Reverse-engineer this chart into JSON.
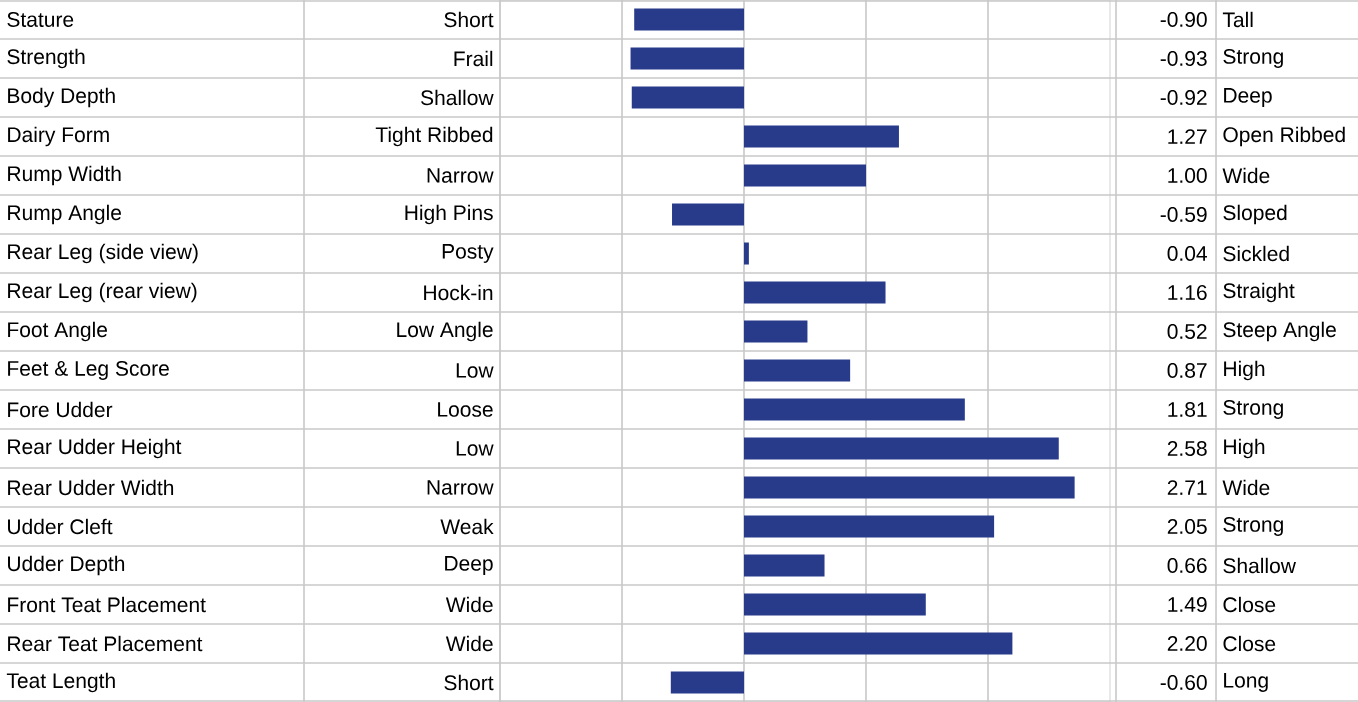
{
  "chart_data": {
    "type": "bar",
    "orientation": "horizontal",
    "color": "#283a8a",
    "grid": "x",
    "xlim": [
      -2,
      3
    ],
    "xticks": [
      {
        "value": -1,
        "label": null
      },
      {
        "value": 0,
        "label": null
      },
      {
        "value": 1,
        "label": null
      },
      {
        "value": 2,
        "label": null
      }
    ],
    "categories": [
      "Stature",
      "Strength",
      "Body Depth",
      "Dairy Form",
      "Rump Width",
      "Rump Angle",
      "Rear Leg (side view)",
      "Rear Leg (rear view)",
      "Foot Angle",
      "Feet & Leg Score",
      "Fore Udder",
      "Rear Udder Height",
      "Rear Udder Width",
      "Udder Cleft",
      "Udder Depth",
      "Front Teat Placement",
      "Rear Teat Placement",
      "Teat Length"
    ],
    "values": [
      -0.9,
      -0.93,
      -0.92,
      1.27,
      1.0,
      -0.59,
      0.04,
      1.16,
      0.52,
      0.87,
      1.81,
      2.58,
      2.71,
      2.05,
      0.66,
      1.49,
      2.2,
      -0.6
    ],
    "value_labels": [
      "-0.90",
      "-0.93",
      "-0.92",
      "1.27",
      "1.00",
      "-0.59",
      "0.04",
      "1.16",
      "0.52",
      "0.87",
      "1.81",
      "2.58",
      "2.71",
      "2.05",
      "0.66",
      "1.49",
      "2.20",
      "-0.60"
    ],
    "annotations": [
      "Short",
      "Tall",
      "Frail",
      "Strong",
      "Shallow",
      "Deep",
      "Tight Ribbed",
      "Open Ribbed",
      "Narrow",
      "Wide",
      "High Pins",
      "Sloped",
      "Posty",
      "Sickled",
      "Hock-in",
      "Straight",
      "Low Angle",
      "Steep Angle",
      "Low",
      "High",
      "Loose",
      "Strong",
      "Low",
      "High",
      "Narrow",
      "Wide",
      "Weak",
      "Strong",
      "Deep",
      "Shallow",
      "Wide",
      "Close",
      "Wide",
      "Close",
      "Short",
      "Long"
    ]
  }
}
